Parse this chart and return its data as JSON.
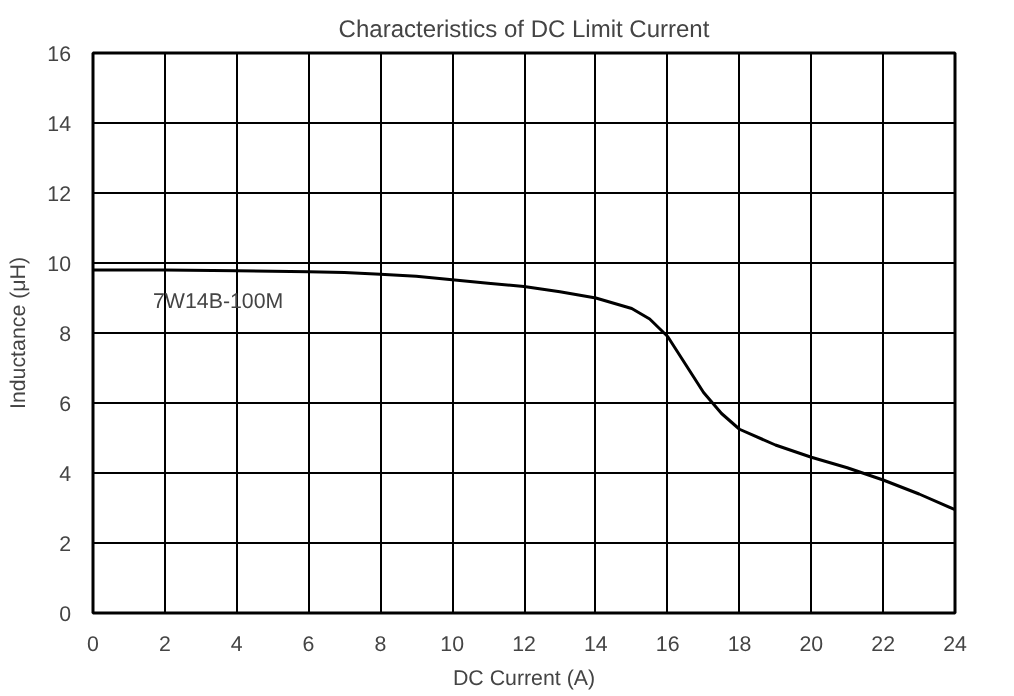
{
  "chart_data": {
    "type": "line",
    "title": "Characteristics of DC Limit Current",
    "xlabel": "DC Current (A)",
    "ylabel": "Inductance (μH)",
    "xlim": [
      0,
      24
    ],
    "ylim": [
      0,
      16
    ],
    "xticks": [
      0,
      2,
      4,
      6,
      8,
      10,
      12,
      14,
      16,
      18,
      20,
      22,
      24
    ],
    "yticks": [
      0,
      2,
      4,
      6,
      8,
      10,
      12,
      14,
      16
    ],
    "grid": true,
    "marker": "none",
    "line_style": "solid",
    "series": [
      {
        "name": "7W14B-100M",
        "color": "#000000",
        "x": [
          0,
          2,
          4,
          6,
          7,
          8,
          9,
          10,
          11,
          12,
          13,
          14,
          15,
          15.5,
          16,
          16.5,
          17,
          17.5,
          18,
          19,
          20,
          21,
          22,
          23,
          24
        ],
        "values": [
          9.8,
          9.8,
          9.78,
          9.75,
          9.73,
          9.68,
          9.62,
          9.52,
          9.42,
          9.33,
          9.18,
          9.0,
          8.7,
          8.4,
          7.9,
          7.1,
          6.3,
          5.7,
          5.25,
          4.8,
          4.45,
          4.15,
          3.8,
          3.4,
          2.95
        ]
      }
    ]
  }
}
